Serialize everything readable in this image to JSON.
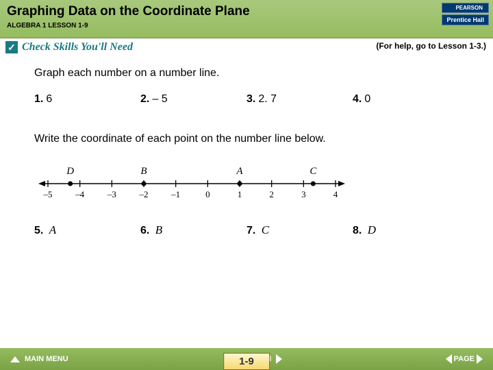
{
  "header": {
    "title": "Graphing Data on the Coordinate Plane",
    "subtitle": "ALGEBRA 1  LESSON 1-9",
    "publisher_top": "PEARSON",
    "publisher_bot": "Prentice Hall"
  },
  "check": {
    "glyph": "✓",
    "text": "Check Skills You'll Need"
  },
  "hint": "(For help, go to Lesson 1-3.)",
  "section1": {
    "instruction": "Graph each number on a number line.",
    "items": [
      {
        "n": "1.",
        "v": "6"
      },
      {
        "n": "2.",
        "v": "– 5"
      },
      {
        "n": "3.",
        "v": "2. 7"
      },
      {
        "n": "4.",
        "v": "0"
      }
    ]
  },
  "section2": {
    "instruction": "Write the coordinate of each point on the number line below.",
    "items": [
      {
        "n": "5.",
        "v": "A"
      },
      {
        "n": "6.",
        "v": "B"
      },
      {
        "n": "7.",
        "v": "C"
      },
      {
        "n": "8.",
        "v": "D"
      }
    ]
  },
  "numberline": {
    "range": [
      -5,
      4
    ],
    "ticks": [
      -5,
      -4,
      -3,
      -2,
      -1,
      0,
      1,
      2,
      3,
      4
    ],
    "points": [
      {
        "label": "D",
        "x": -4.3
      },
      {
        "label": "B",
        "x": -2
      },
      {
        "label": "A",
        "x": 1
      },
      {
        "label": "C",
        "x": 3.3
      }
    ],
    "line_color": "#000000",
    "tick_label_font": "Times New Roman",
    "point_label_font": "Times New Roman italic"
  },
  "footer": {
    "main_menu": "MAIN MENU",
    "lesson": "LESSON",
    "page": "PAGE",
    "lesson_tag": "1-9"
  }
}
